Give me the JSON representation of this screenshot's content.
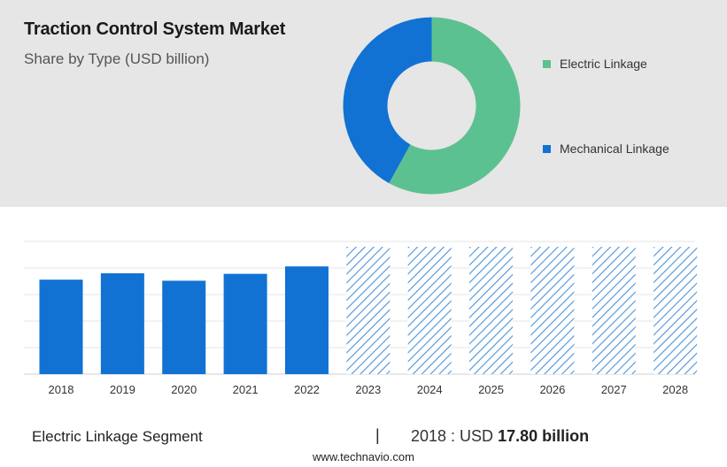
{
  "header": {
    "title": "Traction Control System Market",
    "subtitle": "Share by Type (USD billion)"
  },
  "colors": {
    "electric": "#5cc191",
    "mechanical": "#1172d3",
    "bar": "#1172d3",
    "forecast_hatch": "#4b93db",
    "top_panel_bg": "#e6e6e6"
  },
  "chart_data": [
    {
      "type": "pie",
      "style": "donut",
      "series": [
        {
          "name": "Electric Linkage",
          "value": 58
        },
        {
          "name": "Mechanical Linkage",
          "value": 42
        }
      ],
      "legend_position": "right"
    },
    {
      "type": "bar",
      "categories": [
        "2018",
        "2019",
        "2020",
        "2021",
        "2022",
        "2023",
        "2024",
        "2025",
        "2026",
        "2027",
        "2028"
      ],
      "values": [
        17.8,
        19.0,
        17.6,
        18.9,
        20.3,
        null,
        null,
        null,
        null,
        null,
        null
      ],
      "forecast_categories": [
        "2023",
        "2024",
        "2025",
        "2026",
        "2027",
        "2028"
      ],
      "forecast_style": "hatched",
      "ylim": [
        0,
        26
      ],
      "grid": true,
      "xlabel": "",
      "ylabel": ""
    }
  ],
  "footer": {
    "segment_label": "Electric Linkage Segment",
    "separator": "|",
    "year_prefix": "2018 : USD ",
    "value_text": "17.80 billion",
    "source": "www.technavio.com"
  }
}
